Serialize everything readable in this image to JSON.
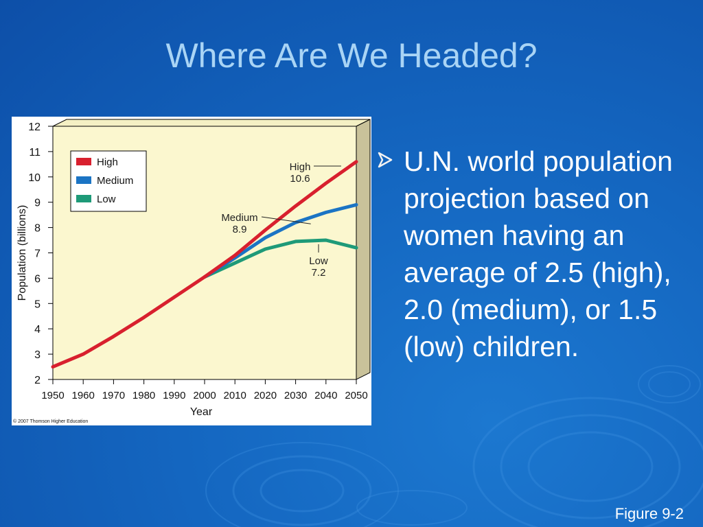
{
  "slide": {
    "title": "Where Are We Headed?",
    "bullet": "U.N. world population projection based on women having an average of 2.5 (high), 2.0 (medium), or 1.5 (low) children.",
    "figure_label": "Figure 9-2",
    "copyright": "© 2007 Thomson Higher Education"
  },
  "colors": {
    "background": "#1466c0",
    "title": "#a9d4f5",
    "plot_bg": "#fbf7cf",
    "high": "#d8202e",
    "medium": "#1b74c4",
    "low": "#1e9a78"
  },
  "chart_data": {
    "type": "line",
    "xlabel": "Year",
    "ylabel": "Population (billions)",
    "xlim": [
      1950,
      2050
    ],
    "ylim": [
      2,
      12
    ],
    "x_ticks": [
      1950,
      1960,
      1970,
      1980,
      1990,
      2000,
      2010,
      2020,
      2030,
      2040,
      2050
    ],
    "y_ticks": [
      2,
      3,
      4,
      5,
      6,
      7,
      8,
      9,
      10,
      11,
      12
    ],
    "legend": {
      "position": "top-left",
      "entries": [
        "High",
        "Medium",
        "Low"
      ]
    },
    "historical": {
      "x": [
        1950,
        1960,
        1970,
        1980,
        1990,
        2000
      ],
      "y": [
        2.5,
        3.0,
        3.7,
        4.45,
        5.25,
        6.05
      ]
    },
    "series": [
      {
        "name": "High",
        "x": [
          2000,
          2010,
          2020,
          2030,
          2040,
          2050
        ],
        "y": [
          6.05,
          6.9,
          7.9,
          8.85,
          9.75,
          10.6
        ]
      },
      {
        "name": "Medium",
        "x": [
          2000,
          2010,
          2020,
          2030,
          2040,
          2050
        ],
        "y": [
          6.05,
          6.8,
          7.6,
          8.2,
          8.6,
          8.9
        ]
      },
      {
        "name": "Low",
        "x": [
          2000,
          2010,
          2020,
          2030,
          2040,
          2050
        ],
        "y": [
          6.05,
          6.6,
          7.15,
          7.45,
          7.5,
          7.2
        ]
      }
    ],
    "annotations": [
      {
        "label": "High",
        "value": "10.6",
        "series": "High"
      },
      {
        "label": "Medium",
        "value": "8.9",
        "series": "Medium"
      },
      {
        "label": "Low",
        "value": "7.2",
        "series": "Low"
      }
    ]
  }
}
